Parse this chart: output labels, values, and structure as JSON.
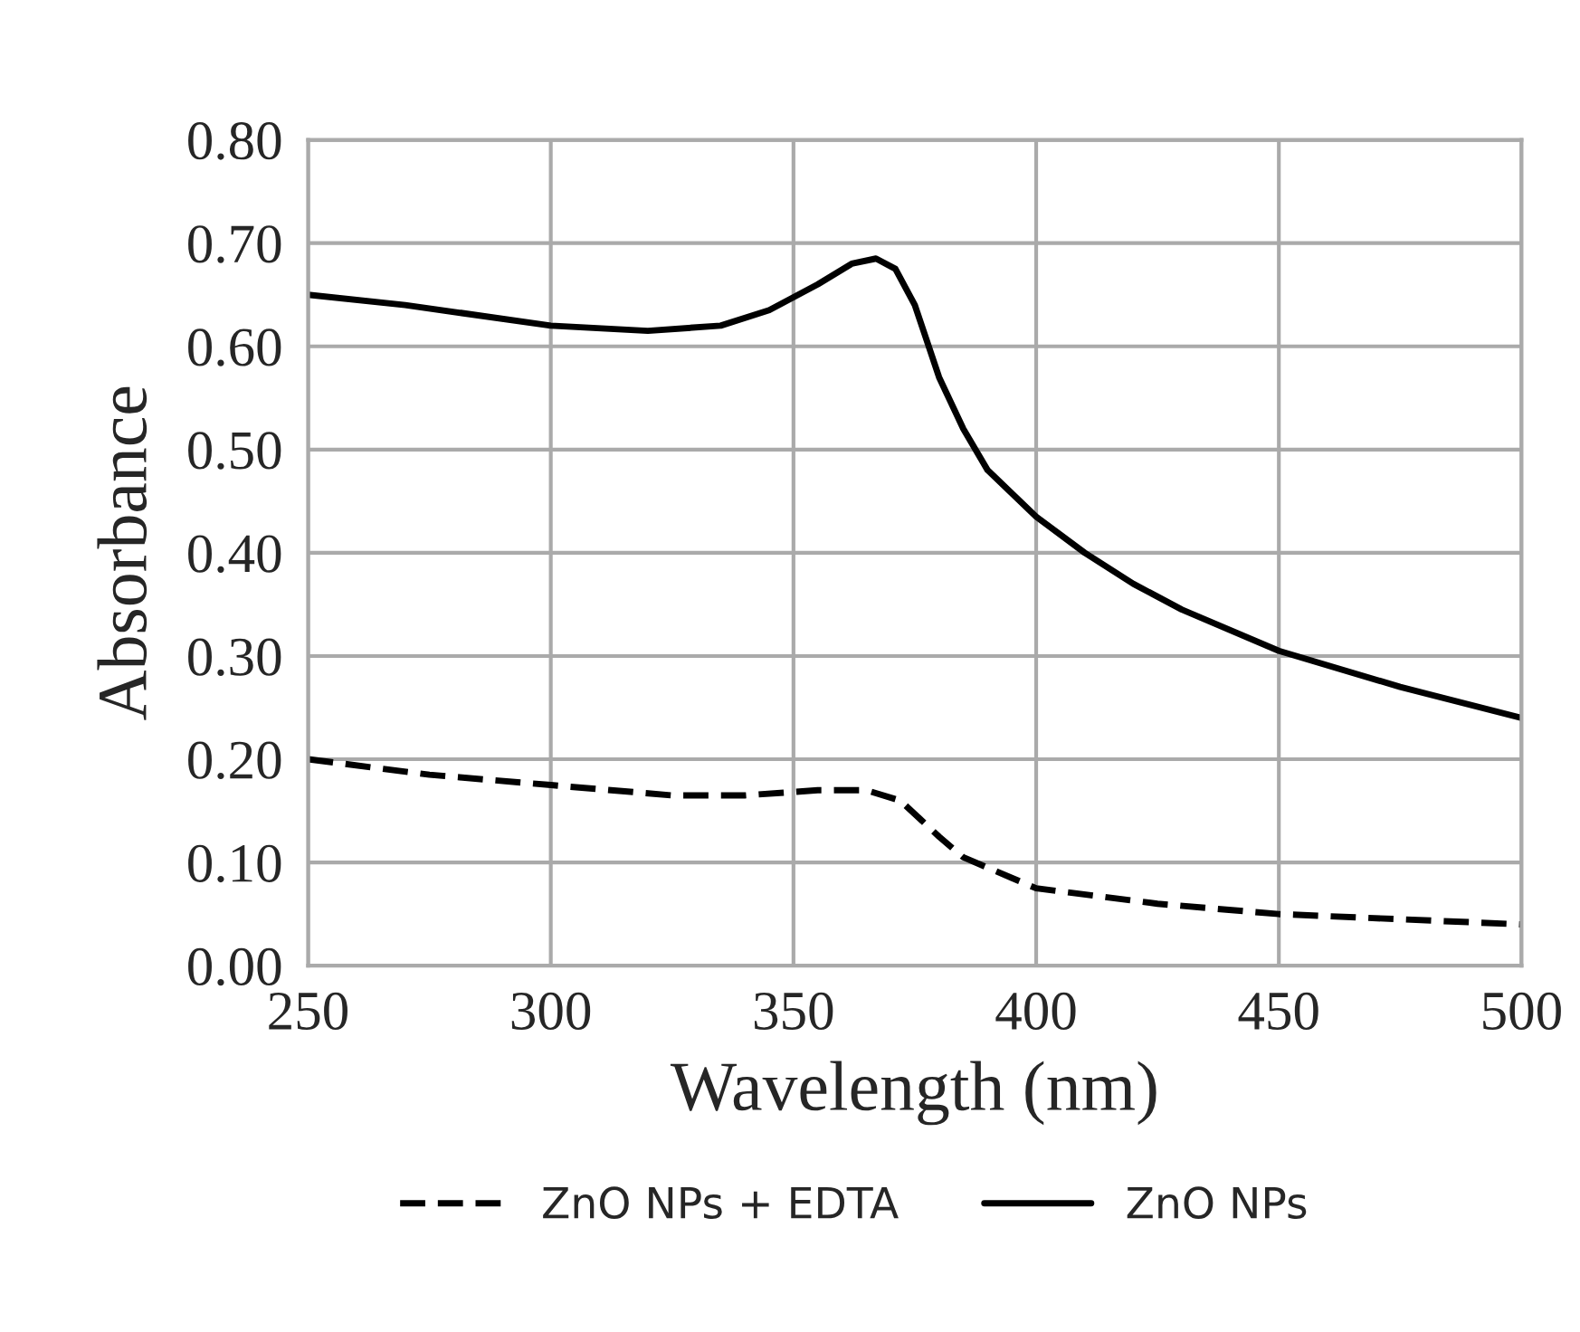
{
  "chart_data": {
    "type": "line",
    "xlabel": "Wavelength (nm)",
    "ylabel": "Absorbance",
    "xlim": [
      250,
      500
    ],
    "xticks": [
      250,
      300,
      350,
      400,
      450,
      500
    ],
    "ylim": [
      0,
      0.8
    ],
    "yticks": [
      {
        "value": 0,
        "label": "0.00"
      },
      {
        "value": 0.1,
        "label": "0.10"
      },
      {
        "value": 0.2,
        "label": "0.20"
      },
      {
        "value": 0.3,
        "label": "0.30"
      },
      {
        "value": 0.4,
        "label": "0.40"
      },
      {
        "value": 0.5,
        "label": "0.50"
      },
      {
        "value": 0.6,
        "label": "0.60"
      },
      {
        "value": 0.7,
        "label": "0.70"
      },
      {
        "value": 0.8,
        "label": "0.80"
      }
    ],
    "grid": true,
    "legend": "bottom",
    "marker": "none",
    "series": [
      {
        "name": "ZnO NPs + EDTA",
        "color": "#000000",
        "line_style": "dashed",
        "x": [
          250,
          275,
          300,
          325,
          340,
          355,
          365,
          372,
          380,
          385,
          395,
          400,
          425,
          450,
          475,
          500
        ],
        "values": [
          0.2,
          0.185,
          0.175,
          0.165,
          0.165,
          0.17,
          0.17,
          0.16,
          0.125,
          0.105,
          0.085,
          0.075,
          0.06,
          0.05,
          0.045,
          0.04
        ]
      },
      {
        "name": "ZnO NPs",
        "color": "#000000",
        "line_style": "solid",
        "x": [
          250,
          270,
          300,
          320,
          335,
          345,
          355,
          362,
          367,
          371,
          375,
          380,
          385,
          390,
          400,
          410,
          420,
          430,
          450,
          475,
          500
        ],
        "values": [
          0.65,
          0.64,
          0.62,
          0.615,
          0.62,
          0.635,
          0.66,
          0.68,
          0.685,
          0.675,
          0.64,
          0.57,
          0.52,
          0.48,
          0.435,
          0.4,
          0.37,
          0.345,
          0.305,
          0.27,
          0.24
        ]
      }
    ]
  }
}
